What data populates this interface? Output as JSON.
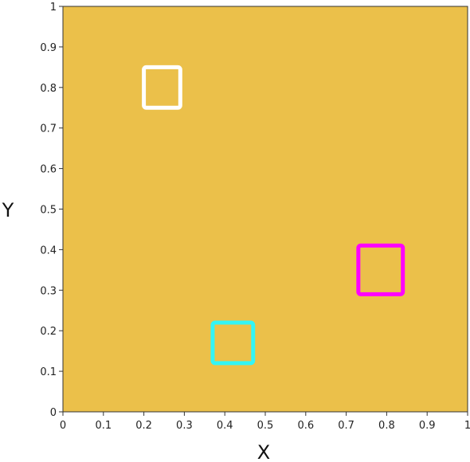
{
  "chart_data": {
    "type": "heatmap",
    "title": "",
    "xlabel": "X",
    "ylabel": "Y",
    "xlim": [
      0,
      1
    ],
    "ylim": [
      0,
      1
    ],
    "x_ticks": [
      "0",
      "0.1",
      "0.2",
      "0.3",
      "0.4",
      "0.5",
      "0.6",
      "0.7",
      "0.8",
      "0.9",
      "1"
    ],
    "y_ticks": [
      "0",
      "0.1",
      "0.2",
      "0.3",
      "0.4",
      "0.5",
      "0.6",
      "0.7",
      "0.8",
      "0.9",
      "1"
    ],
    "colors": {
      "phase_high": "#ebc04a",
      "phase_low": "#2c2c8c",
      "interface": "#000000"
    },
    "highlight_boxes": [
      {
        "name": "white-box",
        "color": "#ffffff",
        "x_range": [
          0.2,
          0.29
        ],
        "y_range": [
          0.75,
          0.85
        ]
      },
      {
        "name": "magenta-box",
        "color": "#ff00ff",
        "x_range": [
          0.73,
          0.84
        ],
        "y_range": [
          0.29,
          0.41
        ]
      },
      {
        "name": "cyan-box",
        "color": "#33f5f5",
        "x_range": [
          0.37,
          0.47
        ],
        "y_range": [
          0.12,
          0.22
        ]
      }
    ]
  }
}
